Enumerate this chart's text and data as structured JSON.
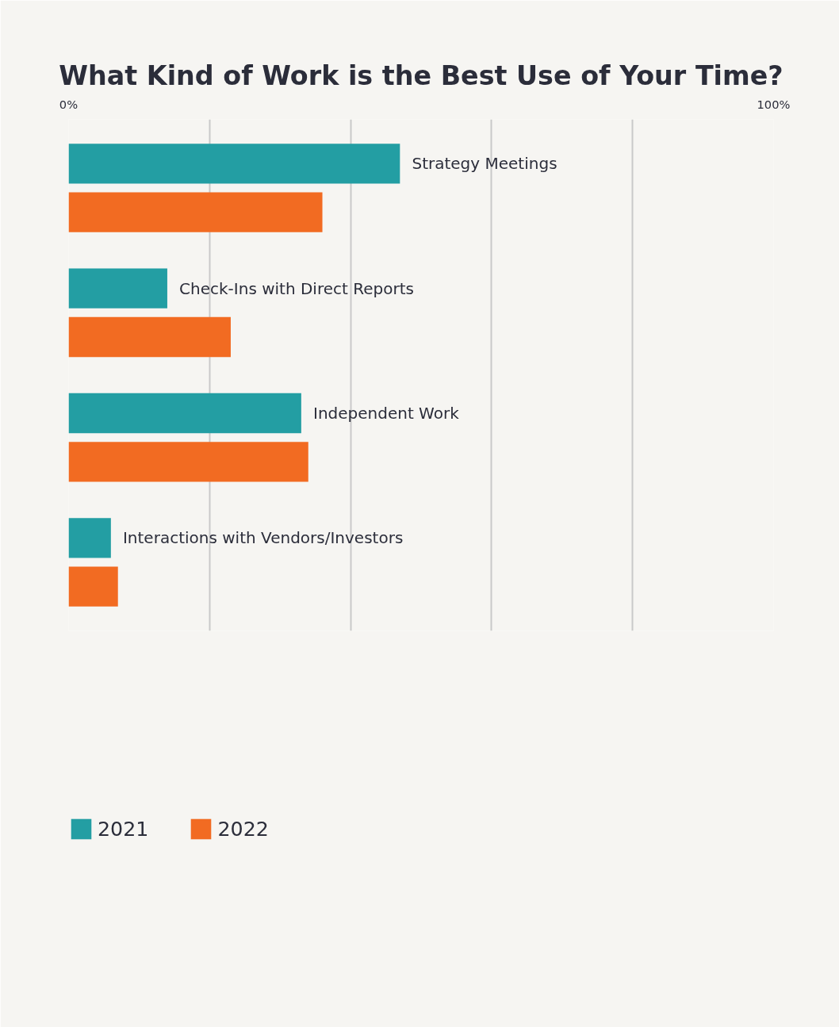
{
  "chart_data": {
    "type": "bar",
    "orientation": "horizontal",
    "title": "What Kind of Work is the Best Use of Your Time?",
    "categories": [
      "Strategy Meetings",
      "Check-Ins with Direct Reports",
      "Independent Work",
      "Interactions with Vendors/Investors"
    ],
    "series": [
      {
        "name": "2021",
        "color": "#239ea3",
        "values": [
          47,
          14,
          33,
          6
        ]
      },
      {
        "name": "2022",
        "color": "#f26b22",
        "values": [
          36,
          23,
          34,
          7
        ]
      }
    ],
    "xlim": [
      0,
      100
    ],
    "xticks": [
      {
        "value": 0,
        "label": "0%"
      },
      {
        "value": 20,
        "label": null
      },
      {
        "value": 40,
        "label": null
      },
      {
        "value": 60,
        "label": null
      },
      {
        "value": 80,
        "label": null
      },
      {
        "value": 100,
        "label": "100%"
      }
    ],
    "tick_labels": "x",
    "grid": "x",
    "legend": "bottom left"
  }
}
